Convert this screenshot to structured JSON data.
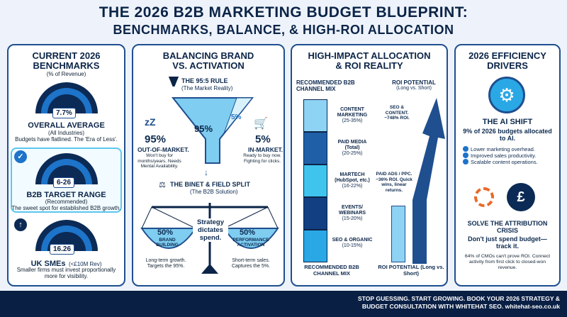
{
  "header": {
    "title_line1": "THE 2026 B2B MARKETING BUDGET BLUEPRINT:",
    "title_line2": "BENCHMARKS, BALANCE, & HIGH-ROI ALLOCATION"
  },
  "benchmarks": {
    "title_line1": "CURRENT 2026",
    "title_line2": "BENCHMARKS",
    "subtitle": "(% of Revenue)",
    "overall": {
      "value": "7.7%",
      "label": "OVERALL AVERAGE",
      "sub": "(All Industries)",
      "note": "Budgets have flatlined. The 'Era of Less'."
    },
    "b2b": {
      "value": "6-26",
      "label": "B2B TARGET RANGE",
      "sub": "(Recommended)",
      "note": "The sweet spot for established B2B growth."
    },
    "uk": {
      "value": "16.26",
      "label": "UK SMEs",
      "label_sub": "(<£10M Rev)",
      "note": "Smaller firms must invest proportionally more for visibility."
    }
  },
  "balance": {
    "title_line1": "BALANCING BRAND",
    "title_line2": "VS. ACTIVATION",
    "rule_title": "THE 95:5 RULE",
    "rule_sub": "(The Market Reality)",
    "funnel_big": "95%",
    "funnel_small": "5%",
    "left_pct": "95%",
    "left_label": "OUT-OF-MARKET.",
    "left_note": "Won't buy for months/years. Needs Mental Availability.",
    "right_pct": "5%",
    "right_label": "IN-MARKET.",
    "right_note": "Ready to buy now. Fighting for clicks.",
    "split_title": "THE BINET & FIELD SPLIT",
    "split_sub": "(The B2B Solution)",
    "strategy": "Strategy dictates spend.",
    "brand_pct": "50%",
    "brand_label": "BRAND BUILDING",
    "brand_note": "Long-term growth. Targets the 95%.",
    "perf_pct": "50%",
    "perf_label": "PERFORMANCE ACTIVATION",
    "perf_note": "Short-term sales. Captures the 5%."
  },
  "allocation": {
    "title_line1": "HIGH-IMPACT ALLOCATION",
    "title_line2": "& ROI REALITY",
    "mix_title": "RECOMMENDED B2B CHANNEL MIX",
    "mix_footer": "RECOMMENDED B2B CHANNEL MIX",
    "roi_title": "ROI POTENTIAL",
    "roi_sub": "(Long vs. Short)",
    "roi_footer": "ROI POTENTIAL (Long vs. Short)",
    "seo_note": "SEO & CONTENT. ~748% ROI.",
    "paid_note": "PAID ADS / PPC. ~36% ROI. Quick wins, linear returns.",
    "channels": [
      {
        "name": "CONTENT MARKETING",
        "range": "(25-35%)",
        "color": "#8fd3f4"
      },
      {
        "name": "PAID MEDIA (Total)",
        "range": "(20-25%)",
        "color": "#1f5fa8"
      },
      {
        "name": "MARTECH (HubSpot, etc.)",
        "range": "(16-22%)",
        "color": "#3fc4ee"
      },
      {
        "name": "EVENTS/ WEBINARS",
        "range": "(15-20%)",
        "color": "#123f82"
      },
      {
        "name": "SEO & ORGANIC",
        "range": "(10-15%)",
        "color": "#2aa8e6"
      }
    ]
  },
  "drivers": {
    "title_line1": "2026 EFFICIENCY",
    "title_line2": "DRIVERS",
    "ai_title": "THE AI SHIFT",
    "ai_stat": "9% of 2026 budgets allocated to AI.",
    "ai_points": [
      "Lower marketing overhead.",
      "Improved sales productivity.",
      "Scalable content operations."
    ],
    "attr_title": "SOLVE THE ATTRIBUTION CRISIS",
    "attr_tag": "Don't just spend budget—track it.",
    "attr_note": "64% of CMOs can't prove ROI. Connect activity from first click to closed-won revenue."
  },
  "footer": {
    "line1": "STOP GUESSING. START GROWING. BOOK YOUR 2026 STRATEGY &",
    "line2": "BUDGET CONSULTATION WITH WHITEHAT SEO. whitehat-seo.co.uk"
  }
}
